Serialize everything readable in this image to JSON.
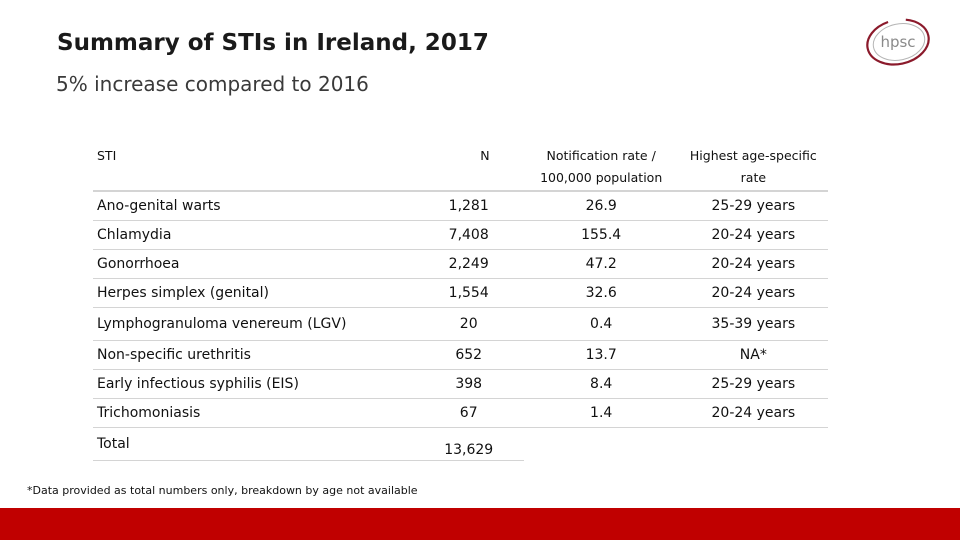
{
  "slide": {
    "title": "Summary of STIs in Ireland, 2017",
    "subtitle": "5% increase compared to 2016",
    "logo_text": "hpsc",
    "footnote": "*Data provided as total numbers only, breakdown by age not available",
    "colors": {
      "accent_bar": "#c00000",
      "logo_ring": "#8b1a2b"
    }
  },
  "table": {
    "headers": {
      "sti": "STI",
      "n": "N",
      "rate_line1": "Notification rate /",
      "rate_line2": "100,000 population",
      "age_line1": "Highest age-specific",
      "age_line2": "rate"
    },
    "rows": [
      {
        "sti": "Ano-genital warts",
        "n": "1,281",
        "rate": "26.9",
        "age": "25-29 years"
      },
      {
        "sti": "Chlamydia",
        "n": "7,408",
        "rate": "155.4",
        "age": "20-24 years"
      },
      {
        "sti": "Gonorrhoea",
        "n": "2,249",
        "rate": "47.2",
        "age": "20-24 years"
      },
      {
        "sti": "Herpes simplex (genital)",
        "n": "1,554",
        "rate": "32.6",
        "age": "20-24 years"
      },
      {
        "sti": "Lymphogranuloma venereum (LGV)",
        "n": "20",
        "rate": "0.4",
        "age": "35-39 years"
      },
      {
        "sti": "Non-specific urethritis",
        "n": "652",
        "rate": "13.7",
        "age": "NA*"
      },
      {
        "sti": "Early infectious syphilis (EIS)",
        "n": "398",
        "rate": "8.4",
        "age": "25-29 years"
      },
      {
        "sti": "Trichomoniasis",
        "n": "67",
        "rate": "1.4",
        "age": "20-24 years"
      }
    ],
    "total": {
      "label": "Total",
      "n": "13,629"
    }
  }
}
